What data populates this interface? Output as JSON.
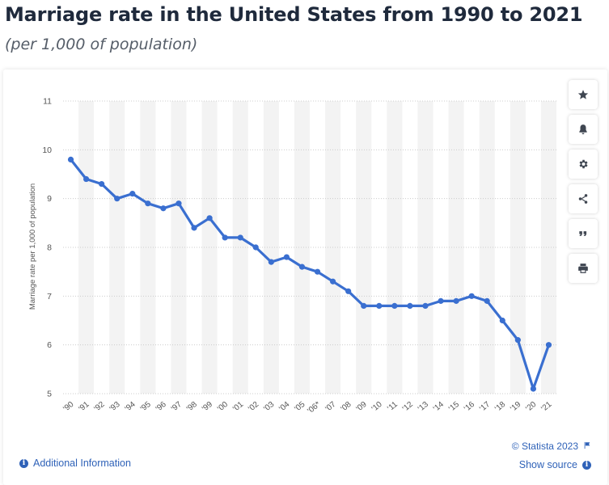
{
  "header": {
    "title": "Marriage rate in the United States from 1990 to 2021",
    "subtitle": "(per 1,000 of population)"
  },
  "toolbar": {
    "buttons": [
      "star-icon",
      "bell-icon",
      "gear-icon",
      "share-icon",
      "quote-icon",
      "print-icon"
    ]
  },
  "footer": {
    "additional_info": "Additional Information",
    "copyright": "© Statista 2023",
    "show_source": "Show source"
  },
  "colors": {
    "line": "#3a6fd0",
    "accent": "#2f62b8",
    "band": "#f3f3f3",
    "grid": "#cccccc"
  },
  "chart_data": {
    "type": "line",
    "title": "Marriage rate in the United States from 1990 to 2021",
    "subtitle": "(per 1,000 of population)",
    "xlabel": "",
    "ylabel": "Marriage rate per 1,000 of population",
    "ylim": [
      5,
      11
    ],
    "yticks": [
      5,
      6,
      7,
      8,
      9,
      10,
      11
    ],
    "grid": true,
    "categories": [
      "'90",
      "'91",
      "'92",
      "'93",
      "'94",
      "'95",
      "'96",
      "'97",
      "'98",
      "'99",
      "'00",
      "'01",
      "'02",
      "'03",
      "'04",
      "'05",
      "'06*",
      "'07",
      "'08",
      "'09",
      "'10",
      "'11",
      "'12",
      "'13",
      "'14",
      "'15",
      "'16",
      "'17",
      "'18",
      "'19",
      "'20",
      "'21"
    ],
    "series": [
      {
        "values": [
          9.8,
          9.4,
          9.3,
          9.0,
          9.1,
          8.9,
          8.8,
          8.9,
          8.4,
          8.6,
          8.2,
          8.2,
          8.0,
          7.7,
          7.8,
          7.6,
          7.5,
          7.3,
          7.1,
          6.8,
          6.8,
          6.8,
          6.8,
          6.8,
          6.9,
          6.9,
          7.0,
          6.9,
          6.5,
          6.1,
          5.1,
          6.0
        ]
      }
    ]
  }
}
